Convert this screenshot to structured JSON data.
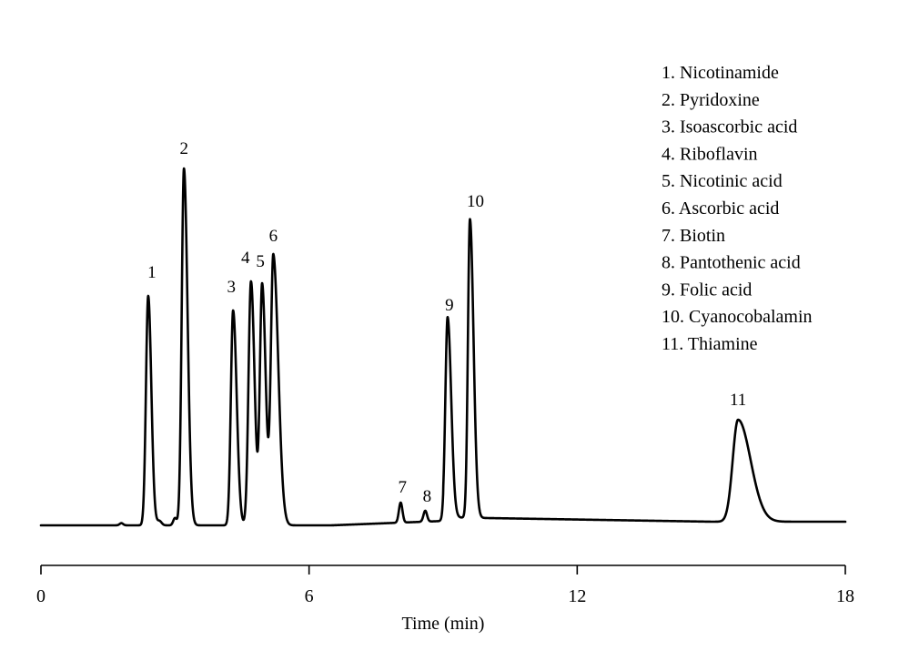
{
  "chart_data": {
    "type": "line",
    "title": "",
    "xlabel": "Time (min)",
    "ylabel": "",
    "xlim": [
      0,
      18
    ],
    "xticks": [
      0,
      6,
      12,
      18
    ],
    "xtick_labels": [
      "0",
      "6",
      "12",
      "18"
    ],
    "grid": false,
    "legend_position": "top-right",
    "baseline": 0,
    "peaks": [
      {
        "label": "1",
        "time": 2.4,
        "height": 0.63
      },
      {
        "label": "2",
        "time": 3.2,
        "height": 0.98
      },
      {
        "label": "3",
        "time": 4.3,
        "height": 0.59
      },
      {
        "label": "4",
        "time": 4.7,
        "height": 0.67
      },
      {
        "label": "5",
        "time": 4.95,
        "height": 0.66
      },
      {
        "label": "6",
        "time": 5.2,
        "height": 0.74
      },
      {
        "label": "7",
        "time": 8.05,
        "height": 0.055
      },
      {
        "label": "8",
        "time": 8.6,
        "height": 0.03
      },
      {
        "label": "9",
        "time": 9.1,
        "height": 0.55
      },
      {
        "label": "10",
        "time": 9.6,
        "height": 0.82
      },
      {
        "label": "11",
        "time": 15.6,
        "height": 0.28
      }
    ],
    "legend": [
      "1. Nicotinamide",
      "2. Pyridoxine",
      "3. Isoascorbic acid",
      "4. Riboflavin",
      "5. Nicotinic acid",
      "6. Ascorbic acid",
      "7. Biotin",
      "8. Pantothenic acid",
      "9. Folic acid",
      "10. Cyanocobalamin",
      "11. Thiamine"
    ],
    "color": "#000000"
  }
}
